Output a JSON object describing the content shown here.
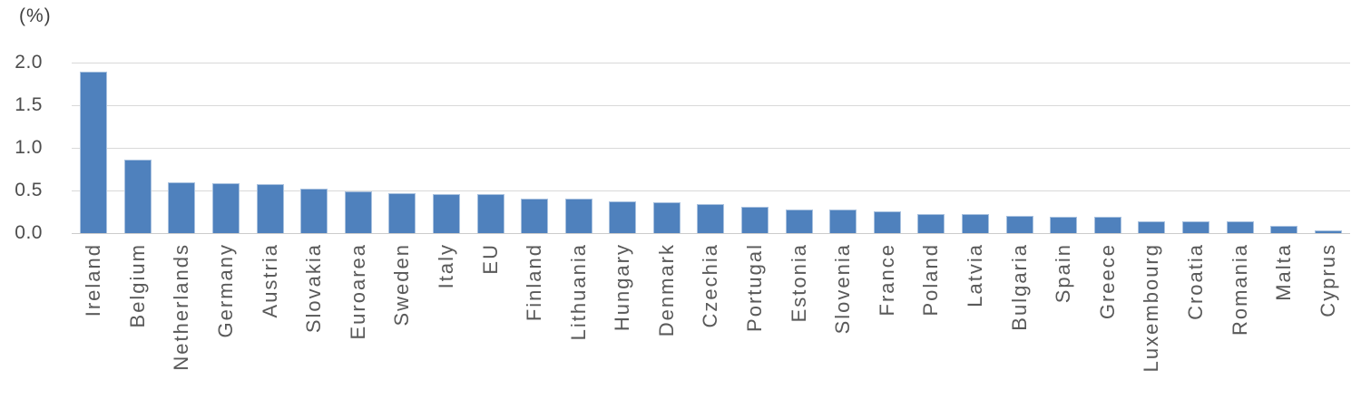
{
  "chart_data": {
    "type": "bar",
    "title": "",
    "unit_label": "(%)",
    "categories": [
      "Ireland",
      "Belgium",
      "Netherlands",
      "Germany",
      "Austria",
      "Slovakia",
      "Euroarea",
      "Sweden",
      "Italy",
      "EU",
      "Finland",
      "Lithuania",
      "Hungary",
      "Denmark",
      "Czechia",
      "Portugal",
      "Estonia",
      "Slovenia",
      "France",
      "Poland",
      "Latvia",
      "Bulgaria",
      "Spain",
      "Greece",
      "Luxembourg",
      "Croatia",
      "Romania",
      "Malta",
      "Cyprus"
    ],
    "values": [
      1.89,
      0.86,
      0.6,
      0.58,
      0.57,
      0.52,
      0.49,
      0.47,
      0.46,
      0.46,
      0.4,
      0.4,
      0.37,
      0.36,
      0.34,
      0.31,
      0.28,
      0.28,
      0.25,
      0.22,
      0.22,
      0.2,
      0.19,
      0.19,
      0.14,
      0.14,
      0.14,
      0.08,
      0.03
    ],
    "xlabel": "",
    "ylabel": "(%)",
    "ylim": [
      0,
      2.0
    ],
    "yticks": [
      0.0,
      0.5,
      1.0,
      1.5,
      2.0
    ],
    "ytick_labels": [
      "0.0",
      "0.5",
      "1.0",
      "1.5",
      "2.0"
    ],
    "grid": true,
    "legend": "none",
    "colors": {
      "bar_fill": "#4f81bd",
      "bar_border": "#a8c1df",
      "gridline": "#d9d9d9",
      "axis_line": "#cccccc",
      "tick_text": "#4d4d4d",
      "category_text": "#595959",
      "unit_text": "#3f3f3f"
    }
  }
}
